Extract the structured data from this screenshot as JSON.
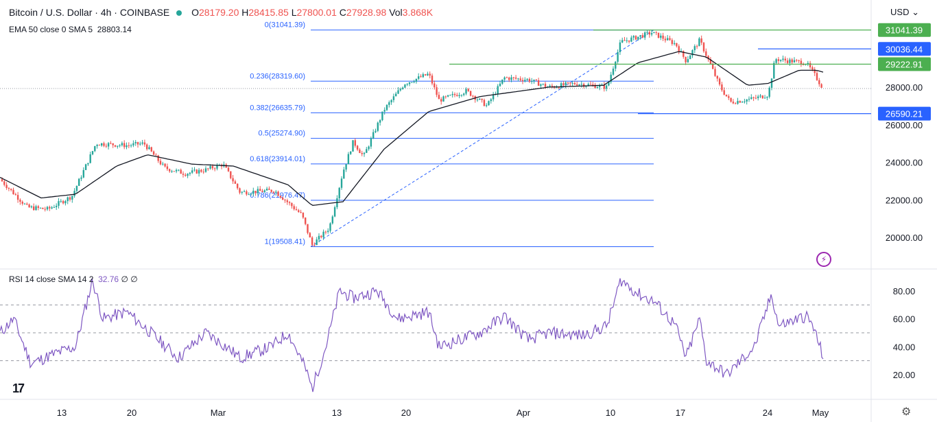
{
  "header": {
    "symbol": "Bitcoin / U.S. Dollar · 4h · COINBASE",
    "open_label": "O",
    "open": "28179.20",
    "high_label": "H",
    "high": "28415.85",
    "low_label": "L",
    "low": "27800.01",
    "close_label": "C",
    "close": "27928.98",
    "vol_label": "Vol",
    "vol": "3.868K",
    "ema_label": "EMA 50 close 0 SMA 5",
    "ema_value": "28803.14",
    "currency": "USD",
    "rsi_label": "RSI 14 close SMA 14 2",
    "rsi_value": "32.76",
    "rsi_extra": "∅ ∅"
  },
  "colors": {
    "up": "#26a69a",
    "down": "#ef5350",
    "ema": "#131722",
    "fib": "#2962ff",
    "green_level": "#4caf50",
    "rsi": "#7e57c2"
  },
  "chart_data": [
    {
      "type": "candlestick",
      "title": "Bitcoin / U.S. Dollar · 4h · COINBASE",
      "ylim": [
        19000,
        31600
      ],
      "y_ticks": [
        "20000.00",
        "22000.00",
        "24000.00",
        "26000.00",
        "28000.00"
      ],
      "x_ticks": [
        "13",
        "20",
        "Mar",
        "13",
        "20",
        "Apr",
        "10",
        "17",
        "24",
        "May"
      ],
      "price_waypoints": [
        [
          0,
          23100
        ],
        [
          40,
          21600
        ],
        [
          70,
          21500
        ],
        [
          105,
          22200
        ],
        [
          140,
          25000
        ],
        [
          185,
          24900
        ],
        [
          210,
          25000
        ],
        [
          240,
          23700
        ],
        [
          270,
          23400
        ],
        [
          300,
          23600
        ],
        [
          325,
          23900
        ],
        [
          350,
          22400
        ],
        [
          400,
          22500
        ],
        [
          440,
          21200
        ],
        [
          455,
          19600
        ],
        [
          480,
          20500
        ],
        [
          500,
          23500
        ],
        [
          515,
          25100
        ],
        [
          530,
          24300
        ],
        [
          560,
          26800
        ],
        [
          590,
          28200
        ],
        [
          625,
          28700
        ],
        [
          640,
          27300
        ],
        [
          680,
          27800
        ],
        [
          710,
          27000
        ],
        [
          735,
          28500
        ],
        [
          770,
          28400
        ],
        [
          800,
          28000
        ],
        [
          840,
          28200
        ],
        [
          885,
          28000
        ],
        [
          905,
          30400
        ],
        [
          950,
          30900
        ],
        [
          985,
          30300
        ],
        [
          1000,
          29400
        ],
        [
          1020,
          30500
        ],
        [
          1050,
          28000
        ],
        [
          1065,
          27200
        ],
        [
          1100,
          27400
        ],
        [
          1120,
          27600
        ],
        [
          1130,
          29500
        ],
        [
          1150,
          29400
        ],
        [
          1175,
          29300
        ],
        [
          1185,
          28800
        ],
        [
          1200,
          27930
        ]
      ],
      "ema_waypoints": [
        [
          0,
          23200
        ],
        [
          60,
          22100
        ],
        [
          110,
          22300
        ],
        [
          170,
          23800
        ],
        [
          215,
          24400
        ],
        [
          280,
          23900
        ],
        [
          340,
          23800
        ],
        [
          420,
          22800
        ],
        [
          455,
          21700
        ],
        [
          500,
          21900
        ],
        [
          560,
          24700
        ],
        [
          625,
          26700
        ],
        [
          700,
          27500
        ],
        [
          800,
          28000
        ],
        [
          880,
          28100
        ],
        [
          930,
          29300
        ],
        [
          990,
          29900
        ],
        [
          1030,
          29600
        ],
        [
          1090,
          28100
        ],
        [
          1120,
          28200
        ],
        [
          1165,
          28900
        ],
        [
          1190,
          28900
        ],
        [
          1200,
          28800
        ]
      ],
      "fib_levels": [
        {
          "label": "0(31041.39)",
          "price": 31041.39
        },
        {
          "label": "0.236(28319.60)",
          "price": 28319.6
        },
        {
          "label": "0.382(26635.79)",
          "price": 26635.79
        },
        {
          "label": "0.5(25274.90)",
          "price": 25274.9
        },
        {
          "label": "0.618(23914.01)",
          "price": 23914.01
        },
        {
          "label": "0.786(21976.47)",
          "price": 21976.47
        },
        {
          "label": "1(19508.41)",
          "price": 19508.41
        }
      ],
      "horizontal_levels": [
        {
          "label": "31041.39",
          "price": 31041.39,
          "color": "#4caf50"
        },
        {
          "label": "30036.44",
          "price": 30036.44,
          "color": "#2962ff"
        },
        {
          "label": "29222.91",
          "price": 29222.91,
          "color": "#4caf50"
        },
        {
          "label": "26590.21",
          "price": 26590.21,
          "color": "#2962ff"
        }
      ],
      "current_price": 27928.98
    },
    {
      "type": "line",
      "title": "RSI 14 close SMA 14 2",
      "ylim": [
        10,
        90
      ],
      "y_ticks": [
        "20.00",
        "40.00",
        "60.00",
        "80.00"
      ],
      "levels": [
        70,
        50,
        30
      ],
      "rsi_waypoints": [
        [
          0,
          50
        ],
        [
          20,
          60
        ],
        [
          45,
          28
        ],
        [
          80,
          35
        ],
        [
          110,
          40
        ],
        [
          135,
          88
        ],
        [
          150,
          60
        ],
        [
          185,
          65
        ],
        [
          220,
          50
        ],
        [
          260,
          32
        ],
        [
          300,
          50
        ],
        [
          330,
          40
        ],
        [
          350,
          32
        ],
        [
          395,
          40
        ],
        [
          420,
          50
        ],
        [
          445,
          25
        ],
        [
          455,
          10
        ],
        [
          475,
          40
        ],
        [
          495,
          80
        ],
        [
          515,
          75
        ],
        [
          550,
          80
        ],
        [
          580,
          60
        ],
        [
          625,
          65
        ],
        [
          640,
          40
        ],
        [
          700,
          50
        ],
        [
          735,
          62
        ],
        [
          770,
          45
        ],
        [
          800,
          50
        ],
        [
          850,
          48
        ],
        [
          885,
          55
        ],
        [
          905,
          88
        ],
        [
          930,
          78
        ],
        [
          955,
          72
        ],
        [
          985,
          55
        ],
        [
          1000,
          32
        ],
        [
          1020,
          60
        ],
        [
          1030,
          30
        ],
        [
          1060,
          20
        ],
        [
          1100,
          40
        ],
        [
          1125,
          78
        ],
        [
          1135,
          55
        ],
        [
          1175,
          62
        ],
        [
          1185,
          55
        ],
        [
          1200,
          33
        ]
      ]
    }
  ]
}
